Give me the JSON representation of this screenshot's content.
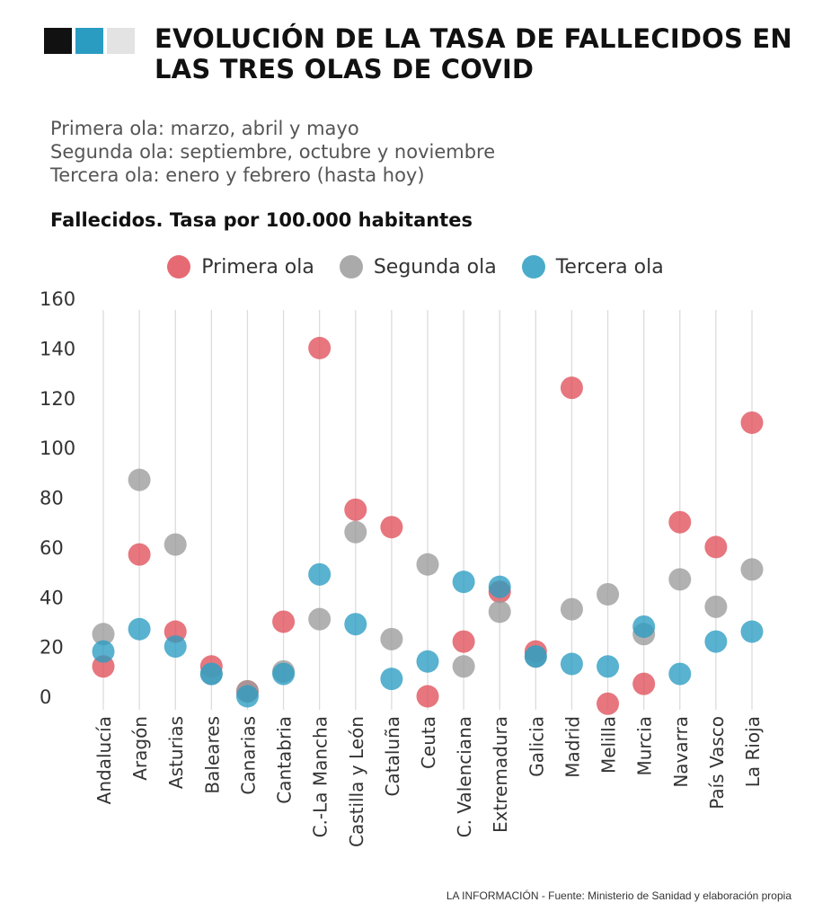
{
  "header": {
    "title": "EVOLUCIÓN DE LA TASA DE FALLECIDOS EN LAS TRES OLAS DE COVID",
    "logo_colors": [
      "#111111",
      "#2A9CC2",
      "#E3E3E3"
    ]
  },
  "subtitle": [
    "Primera ola: marzo, abril y mayo",
    "Segunda ola: septiembre, octubre y noviembre",
    "Tercera ola: enero y febrero (hasta hoy)"
  ],
  "metric_label": "Fallecidos. Tasa por 100.000 habitantes",
  "footer": "LA INFORMACIÓN - Fuente:  Ministerio de Sanidad y elaboración propia",
  "chart_data": {
    "type": "scatter",
    "title": "Fallecidos. Tasa por 100.000 habitantes",
    "xlabel": "",
    "ylabel": "",
    "ylim": [
      0,
      160
    ],
    "yticks": [
      0,
      20,
      40,
      60,
      80,
      100,
      120,
      140,
      160
    ],
    "grid": "vertical",
    "legend_position": "top-center",
    "categories": [
      "Andalucía",
      "Aragón",
      "Asturias",
      "Baleares",
      "Canarias",
      "Cantabria",
      "C.-La Mancha",
      "Castilla y León",
      "Cataluña",
      "Ceuta",
      "C. Valenciana",
      "Extremadura",
      "Galicia",
      "Madrid",
      "Melilla",
      "Murcia",
      "Navarra",
      "País Vasco",
      "La Rioja"
    ],
    "series": [
      {
        "name": "Primera ola",
        "color": "#E0505A",
        "values": [
          12,
          57,
          26,
          12,
          2,
          30,
          140,
          75,
          68,
          0,
          22,
          42,
          18,
          124,
          -3,
          5,
          70,
          60,
          110
        ]
      },
      {
        "name": "Segunda ola",
        "color": "#9B9B9B",
        "values": [
          25,
          87,
          61,
          9,
          2,
          10,
          31,
          66,
          23,
          53,
          12,
          34,
          16,
          35,
          41,
          25,
          47,
          36,
          51
        ]
      },
      {
        "name": "Tercera ola",
        "color": "#2A9CC2",
        "values": [
          18,
          27,
          20,
          9,
          0,
          9,
          49,
          29,
          7,
          14,
          46,
          44,
          16,
          13,
          12,
          28,
          9,
          22,
          26
        ]
      }
    ]
  }
}
